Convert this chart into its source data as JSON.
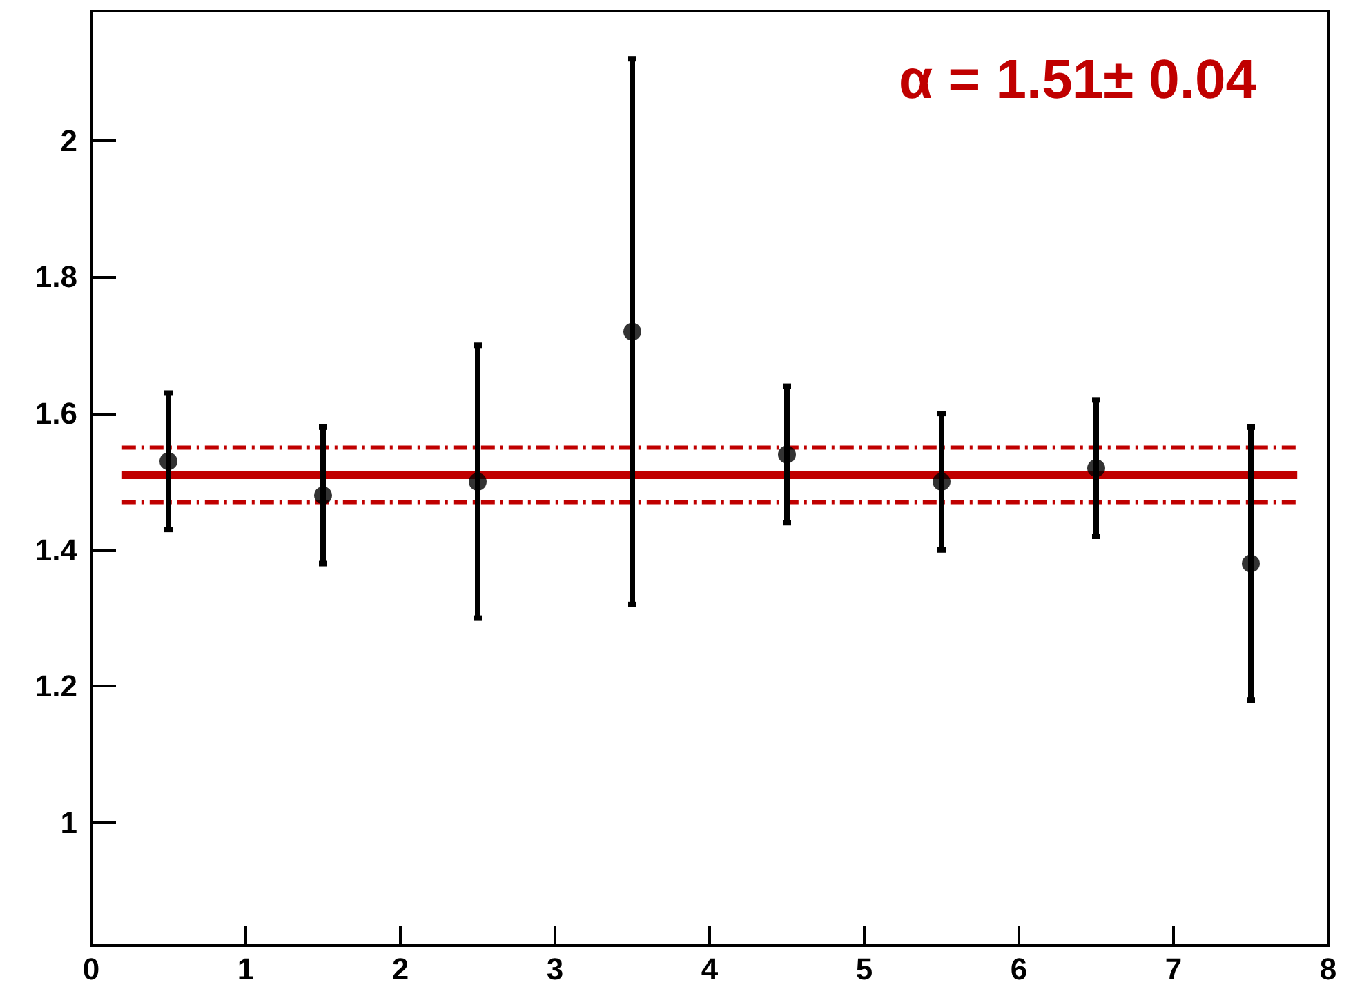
{
  "chart_data": {
    "type": "scatter",
    "xlim": [
      0,
      8
    ],
    "xticks": [
      0,
      1,
      2,
      3,
      4,
      5,
      6,
      7,
      8
    ],
    "ylim": [
      0.82,
      2.19
    ],
    "yticks": [
      1,
      1.2,
      1.4,
      1.6,
      1.8,
      2
    ],
    "grid": false,
    "annotations": [
      "α = 1.51± 0.04"
    ],
    "series": [
      {
        "marker": "circle",
        "color": "#000000",
        "x": [
          0.5,
          1.5,
          2.5,
          3.5,
          4.5,
          5.5,
          6.5,
          7.5
        ],
        "values": [
          1.53,
          1.48,
          1.5,
          1.72,
          1.54,
          1.5,
          1.52,
          1.38
        ],
        "errors": [
          [
            1.43,
            1.63
          ],
          [
            1.38,
            1.58
          ],
          [
            1.3,
            1.7
          ],
          [
            1.32,
            2.12
          ],
          [
            1.44,
            1.64
          ],
          [
            1.4,
            1.6
          ],
          [
            1.42,
            1.62
          ],
          [
            1.18,
            1.58
          ]
        ]
      },
      {
        "type": "line",
        "color": "#c00000",
        "line_style": "solid",
        "marker": "none",
        "x": [
          0.2,
          7.8
        ],
        "values": [
          1.51,
          1.51
        ]
      },
      {
        "type": "line",
        "color": "#c00000",
        "line_style": "dashed",
        "marker": "none",
        "x": [
          0.2,
          7.8
        ],
        "values": [
          1.55,
          1.55
        ]
      },
      {
        "type": "line",
        "color": "#c00000",
        "line_style": "dashed",
        "marker": "none",
        "x": [
          0.2,
          7.8
        ],
        "values": [
          1.47,
          1.47
        ]
      }
    ]
  }
}
